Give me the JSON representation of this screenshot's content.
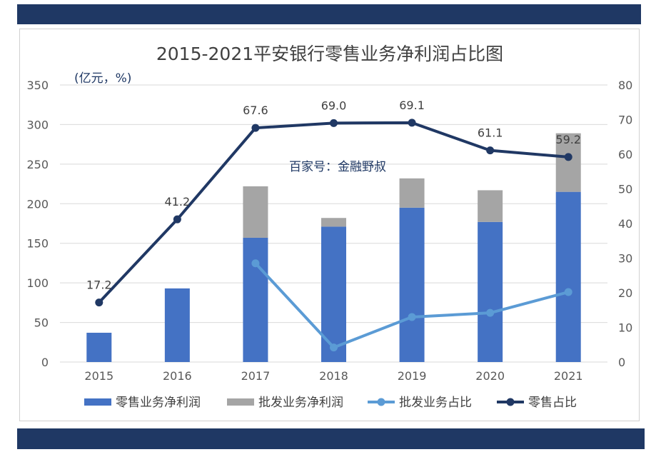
{
  "chart_data": {
    "type": "bar",
    "title": "2015-2021平安银行零售业务净利润占比图",
    "unit_label": "(亿元，%)",
    "watermark": "百家号：金融野叔",
    "categories": [
      "2015",
      "2016",
      "2017",
      "2018",
      "2019",
      "2020",
      "2021"
    ],
    "y_left": {
      "min": 0,
      "max": 350,
      "ticks": [
        "0",
        "50",
        "100",
        "150",
        "200",
        "250",
        "300",
        "350"
      ]
    },
    "y_right": {
      "min": 0,
      "max": 80,
      "ticks": [
        "0",
        "10",
        "20",
        "30",
        "40",
        "50",
        "60",
        "70",
        "80"
      ]
    },
    "grid": true,
    "legend_position": "bottom",
    "series": [
      {
        "name": "零售业务净利润",
        "kind": "bar_stack",
        "axis": "left",
        "color": "#4472c4",
        "values": [
          37,
          93,
          157,
          171,
          195,
          177,
          215
        ]
      },
      {
        "name": "批发业务净利润",
        "kind": "bar_stack",
        "axis": "left",
        "color": "#a5a5a5",
        "values": [
          0,
          0,
          65,
          11,
          37,
          40,
          74
        ]
      },
      {
        "name": "批发业务占比",
        "kind": "line",
        "axis": "right",
        "color": "#5b9bd5",
        "values": [
          null,
          null,
          28.5,
          4.2,
          13.0,
          14.2,
          20.2
        ]
      },
      {
        "name": "零售占比",
        "kind": "line",
        "axis": "right",
        "color": "#203864",
        "values": [
          17.2,
          41.2,
          67.6,
          69.0,
          69.1,
          61.1,
          59.2
        ],
        "labels": [
          "17.2",
          "41.2",
          "67.6",
          "69.0",
          "69.1",
          "61.1",
          "59.2"
        ]
      }
    ]
  }
}
